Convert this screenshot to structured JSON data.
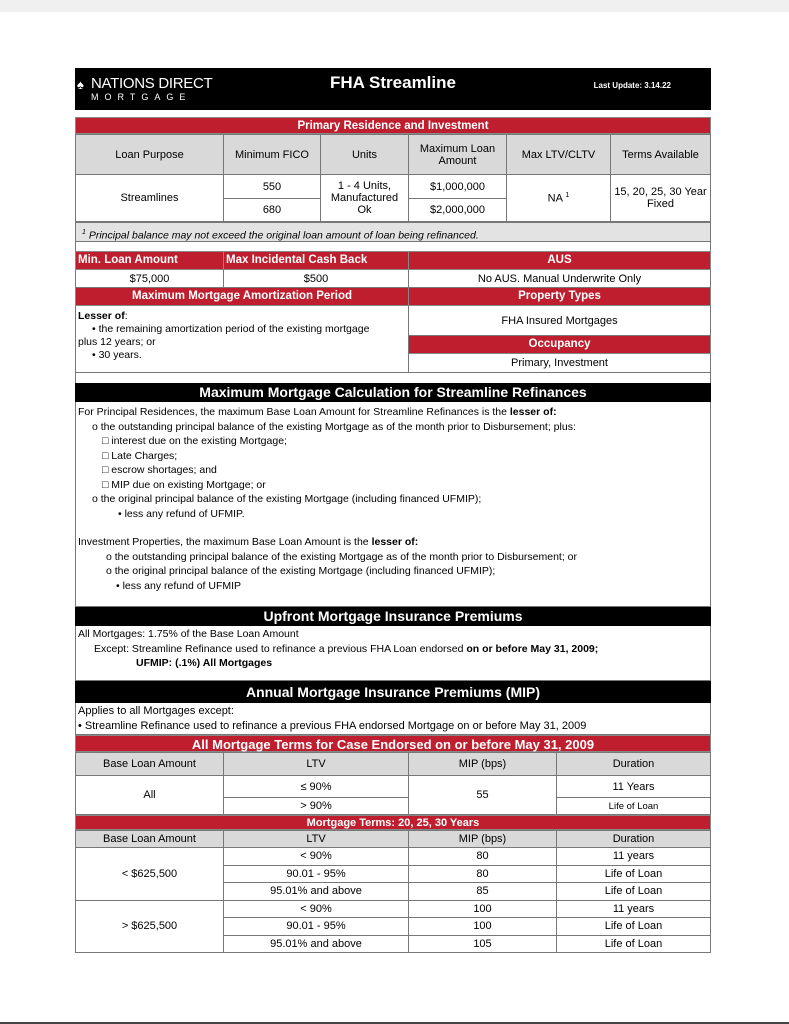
{
  "header": {
    "logo_line1": "NATIONS DIRECT",
    "logo_line2": "MORTGAGE",
    "title": "FHA Streamline",
    "last_update": "Last Update: 3.14.22"
  },
  "primary": {
    "title": "Primary Residence and Investment",
    "columns": [
      "Loan Purpose",
      "Minimum FICO",
      "Units",
      "Maximum Loan Amount",
      "Max LTV/CLTV",
      "Terms Available"
    ],
    "loan_purpose": "Streamlines",
    "fico": [
      "550",
      "680"
    ],
    "units": "1 - 4 Units, Manufactured Ok",
    "max_loan": [
      "$1,000,000",
      "$2,000,000"
    ],
    "ltv": "NA",
    "ltv_sup": "1",
    "terms": "15, 20, 25, 30 Year Fixed",
    "footnote_mark": "1",
    "footnote": "Principal balance may not exceed the original loan amount of loan being refinanced."
  },
  "limits": {
    "min_loan_label": "Min. Loan Amount",
    "min_loan": "$75,000",
    "cash_back_label": "Max Incidental Cash Back",
    "cash_back": "$500",
    "aus_label": "AUS",
    "aus": "No AUS. Manual Underwrite Only",
    "amort_label": "Maximum Mortgage Amortization Period",
    "amort_lead": "Lesser of",
    "amort_lines": [
      "• the remaining amortization period of the existing mortgage",
      "plus 12 years; or",
      "• 30 years."
    ],
    "property_label": "Property Types",
    "property": "FHA Insured Mortgages",
    "occupancy_label": "Occupancy",
    "occupancy": "Primary, Investment"
  },
  "calc": {
    "title": "Maximum Mortgage Calculation for Streamline Refinances",
    "p1_lead": "For Principal Residences, the maximum Base Loan Amount for Streamline Refinances is the ",
    "p1_bold": "lesser of:",
    "p1_lines": [
      "o the outstanding principal balance of the existing Mortgage as of the month prior to Disbursement; plus:",
      "□ interest due on the existing Mortgage;",
      "□ Late Charges;",
      "□ escrow shortages; and",
      "□ MIP due on existing Mortgage; or",
      "o the original principal balance of the existing Mortgage (including financed UFMIP);",
      "• less any refund of UFMIP."
    ],
    "p2_lead": "Investment Properties, the maximum Base Loan Amount is the ",
    "p2_bold": "lesser of:",
    "p2_lines": [
      "o the outstanding principal balance of the existing Mortgage as of the month prior to Disbursement; or",
      "o the original principal balance of the existing Mortgage (including financed UFMIP);",
      "• less any refund of UFMIP"
    ]
  },
  "ufmip": {
    "title": "Upfront Mortgage Insurance Premiums",
    "line1": "All Mortgages: 1.75% of the Base Loan Amount",
    "line2": "Except: Streamline Refinance used to refinance a previous FHA Loan endorsed ",
    "line2_bold": "on or before May 31, 2009;",
    "line3": "UFMIP: (.1%) All Mortgages"
  },
  "mip": {
    "title": "Annual Mortgage Insurance Premiums (MIP)",
    "line1": "Applies to all Mortgages except:",
    "line2": "• Streamline Refinance used to refinance a previous FHA endorsed Mortgage on or before May 31, 2009",
    "table1_title": "All Mortgage Terms for Case Endorsed on or before May 31, 2009",
    "columns": [
      "Base Loan Amount",
      "LTV",
      "MIP (bps)",
      "Duration"
    ],
    "t1": {
      "base": "All",
      "ltv": [
        "≤ 90%",
        "> 90%"
      ],
      "mip": "55",
      "duration": [
        "11 Years",
        "Life of Loan"
      ]
    },
    "table2_title": "Mortgage Terms: 20, 25, 30 Years",
    "t2": [
      {
        "base": "< $625,500",
        "rows": [
          {
            "ltv": "< 90%",
            "mip": "80",
            "duration": "11 years"
          },
          {
            "ltv": "90.01 - 95%",
            "mip": "80",
            "duration": "Life of Loan"
          },
          {
            "ltv": "95.01% and above",
            "mip": "85",
            "duration": "Life of Loan"
          }
        ]
      },
      {
        "base": "> $625,500",
        "rows": [
          {
            "ltv": "< 90%",
            "mip": "100",
            "duration": "11 years"
          },
          {
            "ltv": "90.01 - 95%",
            "mip": "100",
            "duration": "Life of Loan"
          },
          {
            "ltv": "95.01% and above",
            "mip": "105",
            "duration": "Life of Loan"
          }
        ]
      }
    ]
  }
}
